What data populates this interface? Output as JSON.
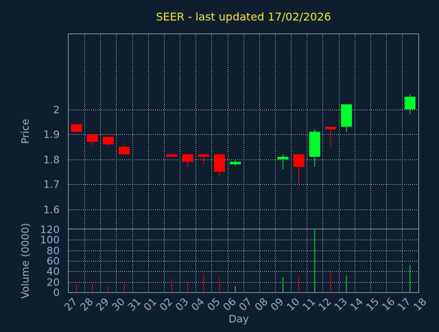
{
  "chart_data": {
    "type": "candlestick",
    "title": "SEER - last updated 17/02/2026",
    "xlabel": "Day",
    "colors": {
      "background": "#0f1e2e",
      "title": "#f5e63c",
      "labels": "#8fb0cc",
      "up": "#00ff2a",
      "down": "#ff0000",
      "grid": "#b9c4cc"
    },
    "x_tick_labels": [
      "27",
      "28",
      "29",
      "30",
      "31",
      "01",
      "02",
      "03",
      "04",
      "05",
      "06",
      "07",
      "08",
      "09",
      "10",
      "11",
      "12",
      "13",
      "14",
      "15",
      "16",
      "17",
      "18"
    ],
    "price": {
      "ylabel": "Price",
      "ylim": [
        1.52,
        2.3
      ],
      "yticks": [
        1.6,
        1.7,
        1.8,
        1.9,
        2.0
      ],
      "ytick_labels": [
        "1.6",
        "1.7",
        "1.8",
        "1.9",
        "2"
      ],
      "candles": [
        {
          "day": 0,
          "open": 1.94,
          "high": 1.94,
          "low": 1.91,
          "close": 1.91
        },
        {
          "day": 1,
          "open": 1.9,
          "high": 1.9,
          "low": 1.85,
          "close": 1.87
        },
        {
          "day": 2,
          "open": 1.89,
          "high": 1.89,
          "low": 1.85,
          "close": 1.86
        },
        {
          "day": 3,
          "open": 1.85,
          "high": 1.86,
          "low": 1.82,
          "close": 1.82
        },
        {
          "day": 6,
          "open": 1.82,
          "high": 1.82,
          "low": 1.81,
          "close": 1.81
        },
        {
          "day": 7,
          "open": 1.82,
          "high": 1.82,
          "low": 1.77,
          "close": 1.79
        },
        {
          "day": 8,
          "open": 1.82,
          "high": 1.82,
          "low": 1.78,
          "close": 1.81
        },
        {
          "day": 9,
          "open": 1.82,
          "high": 1.82,
          "low": 1.73,
          "close": 1.75
        },
        {
          "day": 10,
          "open": 1.78,
          "high": 1.795,
          "low": 1.775,
          "close": 1.79
        },
        {
          "day": 13,
          "open": 1.8,
          "high": 1.82,
          "low": 1.76,
          "close": 1.81
        },
        {
          "day": 14,
          "open": 1.82,
          "high": 1.82,
          "low": 1.7,
          "close": 1.77
        },
        {
          "day": 15,
          "open": 1.81,
          "high": 1.92,
          "low": 1.77,
          "close": 1.91
        },
        {
          "day": 16,
          "open": 1.93,
          "high": 1.93,
          "low": 1.85,
          "close": 1.92
        },
        {
          "day": 17,
          "open": 1.93,
          "high": 2.02,
          "low": 1.91,
          "close": 2.02
        },
        {
          "day": 21,
          "open": 2.0,
          "high": 2.06,
          "low": 1.98,
          "close": 2.05
        }
      ]
    },
    "volume": {
      "ylabel": "Volume (0000)",
      "ylim": [
        0,
        120
      ],
      "yticks": [
        0,
        20,
        40,
        60,
        80,
        100,
        120
      ],
      "ytick_labels": [
        "0",
        "20",
        "40",
        "60",
        "80",
        "100",
        "120"
      ],
      "bars": [
        {
          "day": 0,
          "value": 14,
          "dir": "down"
        },
        {
          "day": 1,
          "value": 16,
          "dir": "down"
        },
        {
          "day": 2,
          "value": 11,
          "dir": "down"
        },
        {
          "day": 3,
          "value": 15,
          "dir": "down"
        },
        {
          "day": 6,
          "value": 25,
          "dir": "down"
        },
        {
          "day": 7,
          "value": 20,
          "dir": "down"
        },
        {
          "day": 8,
          "value": 33,
          "dir": "down"
        },
        {
          "day": 9,
          "value": 29,
          "dir": "down"
        },
        {
          "day": 10,
          "value": 12,
          "dir": "up"
        },
        {
          "day": 13,
          "value": 29,
          "dir": "up"
        },
        {
          "day": 14,
          "value": 32,
          "dir": "down"
        },
        {
          "day": 15,
          "value": 119,
          "dir": "up"
        },
        {
          "day": 16,
          "value": 42,
          "dir": "down"
        },
        {
          "day": 17,
          "value": 32,
          "dir": "up"
        },
        {
          "day": 21,
          "value": 52,
          "dir": "up"
        }
      ]
    }
  }
}
